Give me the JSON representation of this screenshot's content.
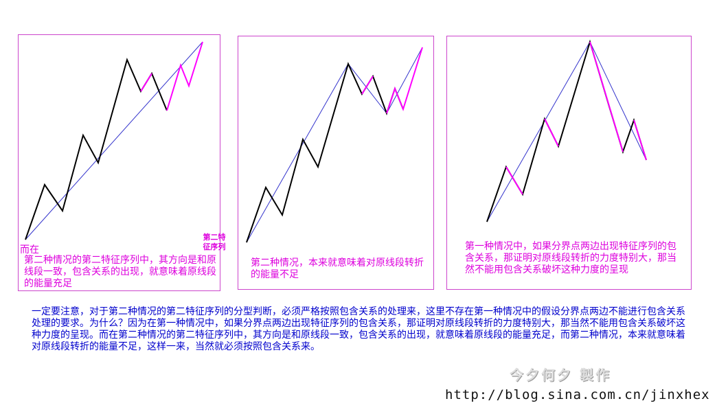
{
  "colors": {
    "main_stroke": "#000000",
    "feature_stroke": "#ff00ff",
    "trend_line": "#3333cc",
    "border": "#cc44cc",
    "caption": "#dd00dd",
    "note": "#0000cc"
  },
  "panel1": {
    "lead": "而在",
    "tag": "第二特\n征序列",
    "caption": "第二种情况的第二特征序列中，其方向是和原线段一致，包含关系的出现，就意味着原线段的能量充足"
  },
  "panel2": {
    "caption": "第二种情况，本来就意味着对原线段转折的能量不足"
  },
  "panel3": {
    "caption": "第一种情况中，如果分界点两边出现特征序列的包含关系，那证明对原线段转折的力度特别大，那当然不能用包含关系破坏这种力度的呈现"
  },
  "note": "一定要注意，对于第二种情况的第二特征序列的分型判断，必须严格按照包含关系的处理来，这里不存在第一种情况中的假设分界点两边不能进行包含关系处理的要求。为什么？因为在第一种情况中，如果分界点两边出现特征序列的包含关系，那证明对原线段转折的力度特别大，那当然不能用包含关系破坏这种力度的呈现。而在第二种情况的第二特征序列中，其方向是和原线段一致，包含关系的出现，就意味着原线段的能量充足，而第二种情况，本来就意味着对原线段转折的能量不足，这样一来，当然就必须按照包含关系来。",
  "credit": "今夕何夕  製作",
  "url": "http://blog.sina.com.cn/jinxhex"
}
